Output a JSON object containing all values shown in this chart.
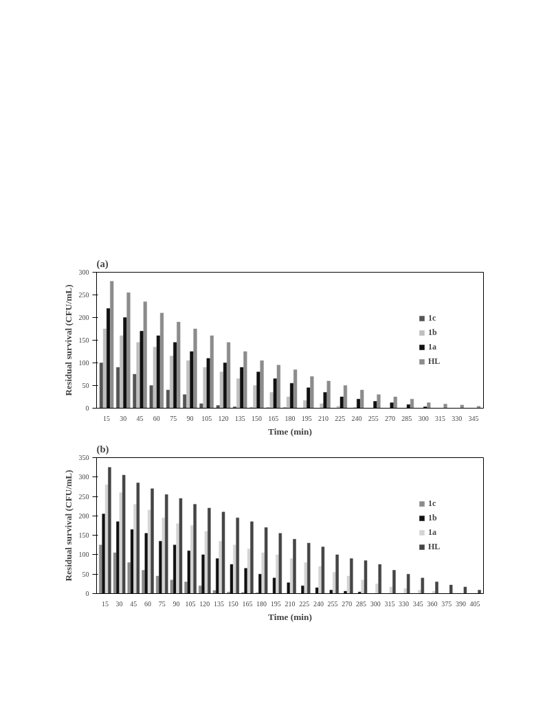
{
  "chart_data": [
    {
      "type": "bar",
      "title": "(a)",
      "xlabel": "Time (min)",
      "ylabel": "Residual survival (CFU/mL)",
      "categories": [
        "15",
        "30",
        "45",
        "60",
        "75",
        "90",
        "105",
        "120",
        "135",
        "150",
        "165",
        "180",
        "195",
        "210",
        "225",
        "240",
        "255",
        "270",
        "285",
        "300",
        "315",
        "330",
        "345"
      ],
      "series": [
        {
          "name": "1c",
          "color": "#555555",
          "values": [
            100,
            90,
            75,
            50,
            40,
            30,
            10,
            6,
            3,
            1,
            1,
            1,
            0,
            0,
            0,
            0,
            0,
            0,
            0,
            0,
            0,
            0,
            0
          ]
        },
        {
          "name": "1b",
          "color": "#bfbfbf",
          "values": [
            175,
            160,
            145,
            135,
            115,
            105,
            90,
            80,
            65,
            50,
            35,
            25,
            17,
            10,
            4,
            2,
            0,
            0,
            0,
            0,
            0,
            0,
            0
          ]
        },
        {
          "name": "1a",
          "color": "#111111",
          "values": [
            220,
            200,
            170,
            160,
            145,
            125,
            110,
            100,
            90,
            80,
            65,
            55,
            45,
            35,
            25,
            20,
            15,
            12,
            8,
            3,
            0,
            0,
            0
          ]
        },
        {
          "name": "HL",
          "color": "#8c8c8c",
          "values": [
            280,
            255,
            235,
            210,
            190,
            175,
            160,
            145,
            125,
            105,
            95,
            85,
            70,
            60,
            50,
            40,
            30,
            25,
            20,
            12,
            9,
            7,
            4
          ]
        }
      ],
      "ylim": [
        0,
        300
      ],
      "yticks": [
        0,
        50,
        100,
        150,
        200,
        250,
        300
      ],
      "legend": "right"
    },
    {
      "type": "bar",
      "title": "(b)",
      "xlabel": "Time (min)",
      "ylabel": "Residual survival (CFU/mL)",
      "categories": [
        "15",
        "30",
        "45",
        "60",
        "75",
        "90",
        "105",
        "120",
        "135",
        "150",
        "165",
        "180",
        "195",
        "210",
        "225",
        "240",
        "255",
        "270",
        "285",
        "300",
        "315",
        "330",
        "345",
        "360",
        "375",
        "390",
        "405"
      ],
      "series": [
        {
          "name": "1c",
          "color": "#8c8c8c",
          "values": [
            125,
            105,
            80,
            60,
            45,
            35,
            30,
            20,
            8,
            4,
            3,
            2,
            0,
            0,
            0,
            0,
            0,
            0,
            0,
            0,
            0,
            0,
            0,
            0,
            0,
            0,
            0
          ]
        },
        {
          "name": "1b",
          "color": "#111111",
          "values": [
            205,
            185,
            165,
            155,
            135,
            125,
            110,
            100,
            90,
            75,
            65,
            50,
            40,
            28,
            20,
            15,
            9,
            6,
            4,
            0,
            0,
            0,
            0,
            0,
            0,
            0,
            0
          ]
        },
        {
          "name": "1a",
          "color": "#d4d4d4",
          "values": [
            280,
            260,
            230,
            215,
            195,
            180,
            175,
            160,
            135,
            125,
            115,
            105,
            100,
            90,
            80,
            70,
            55,
            45,
            35,
            25,
            17,
            13,
            9,
            6,
            0,
            0,
            0
          ]
        },
        {
          "name": "HL",
          "color": "#454545",
          "values": [
            325,
            305,
            285,
            270,
            255,
            245,
            230,
            220,
            210,
            195,
            185,
            170,
            155,
            140,
            130,
            120,
            100,
            90,
            85,
            75,
            60,
            50,
            40,
            30,
            22,
            17,
            9
          ]
        }
      ],
      "ylim": [
        0,
        350
      ],
      "yticks": [
        0,
        50,
        100,
        150,
        200,
        250,
        300,
        350
      ],
      "legend": "right"
    }
  ]
}
